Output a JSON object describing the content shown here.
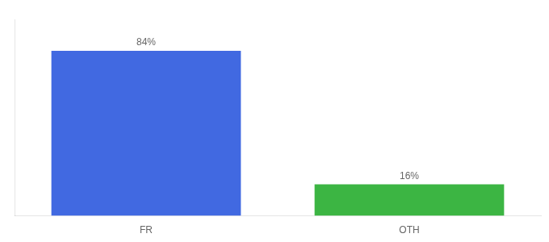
{
  "chart_data": {
    "type": "bar",
    "categories": [
      "FR",
      "OTH"
    ],
    "values": [
      84,
      16
    ],
    "value_labels": [
      "84%",
      "16%"
    ],
    "data_labels": true,
    "colors": [
      "#4169e1",
      "#3cb543"
    ],
    "ylim": [
      0,
      100
    ],
    "grid": false,
    "tick_labels": "x"
  }
}
